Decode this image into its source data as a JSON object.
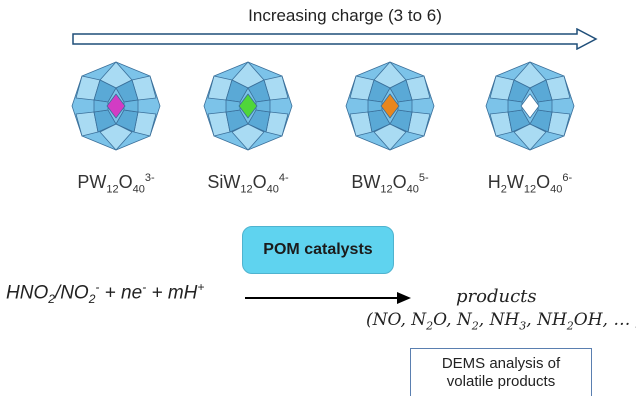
{
  "arrow": {
    "label": "Increasing charge (3 to 6)"
  },
  "clusters": [
    {
      "formula_parts": [
        "PW",
        "12",
        "O",
        "40",
        "3-"
      ],
      "center_color": "#d23cc4"
    },
    {
      "formula_parts": [
        "SiW",
        "12",
        "O",
        "40",
        "4-"
      ],
      "center_color": "#4fd63a"
    },
    {
      "formula_parts": [
        "BW",
        "12",
        "O",
        "40",
        "5-"
      ],
      "center_color": "#e8861e"
    },
    {
      "formula_parts": [
        "H",
        "2",
        "W",
        "12",
        "O",
        "40",
        "6-"
      ],
      "center_color": "#ffffff"
    }
  ],
  "pom_box": {
    "label": "POM catalysts"
  },
  "reaction": {
    "p1": "HNO",
    "p1_sub": "2",
    "p2": "/NO",
    "p2_sub": "2",
    "p2_sup": "-",
    "p3": " + ne",
    "p3_sup": "-",
    "p4": " + mH",
    "p4_sup": "+"
  },
  "products": {
    "word": "products",
    "open": "(NO, N",
    "sub1": "2",
    "a": "O, N",
    "sub2": "2",
    "b": ", NH",
    "sub3": "3",
    "c": ", NH",
    "sub4": "2",
    "close": "OH, … )"
  },
  "dems_box": {
    "line1": "DEMS analysis of",
    "line2": "volatile products"
  },
  "colors": {
    "polyhedron": "#7cc3e9",
    "polyhedron_light": "#a9dbf3",
    "edge": "#3a6f9a",
    "arrow_outline": "#1f4e79"
  }
}
